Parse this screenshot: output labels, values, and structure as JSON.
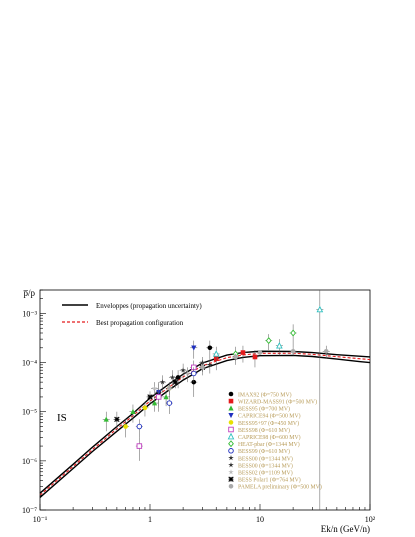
{
  "chart_data": {
    "type": "scatter",
    "title": "",
    "xlabel": "Ek/n (GeV/n)",
    "ylabel": "p̅/p",
    "xscale": "log",
    "yscale": "log",
    "xlim": [
      0.1,
      100
    ],
    "ylim": [
      1e-07,
      0.003
    ],
    "grid": false,
    "annotation": "IS",
    "x_tick_labels": [
      "10⁻¹",
      "1",
      "10",
      "10²"
    ],
    "x_tick_values": [
      0.1,
      1,
      10,
      100
    ],
    "y_tick_labels": [
      "10⁻⁷",
      "10⁻⁶",
      "10⁻⁵",
      "10⁻⁴",
      "10⁻³"
    ],
    "y_tick_values": [
      1e-07,
      1e-06,
      1e-05,
      0.0001,
      0.001
    ],
    "curves": [
      {
        "name": "Enveloppes (propagation uncertainty)",
        "style": "solid",
        "color": "#000000",
        "upper": [
          [
            0.1,
            2.2e-07
          ],
          [
            0.2,
            8.5e-07
          ],
          [
            0.3,
            1.9e-06
          ],
          [
            0.5,
            5e-06
          ],
          [
            0.7,
            9.2e-06
          ],
          [
            1,
            1.9e-05
          ],
          [
            1.5,
            3.7e-05
          ],
          [
            2,
            5.8e-05
          ],
          [
            3,
            9.8e-05
          ],
          [
            5,
            0.000142
          ],
          [
            7,
            0.00016
          ],
          [
            10,
            0.00017
          ],
          [
            20,
            0.000168
          ],
          [
            30,
            0.00016
          ],
          [
            50,
            0.000145
          ],
          [
            80,
            0.000135
          ],
          [
            100,
            0.00013
          ]
        ],
        "lower": [
          [
            0.1,
            1.8e-07
          ],
          [
            0.2,
            7e-07
          ],
          [
            0.3,
            1.55e-06
          ],
          [
            0.5,
            4e-06
          ],
          [
            0.7,
            7.4e-06
          ],
          [
            1,
            1.45e-05
          ],
          [
            1.5,
            2.8e-05
          ],
          [
            2,
            4.4e-05
          ],
          [
            3,
            7.5e-05
          ],
          [
            5,
            0.00011
          ],
          [
            7,
            0.000127
          ],
          [
            10,
            0.000138
          ],
          [
            20,
            0.00014
          ],
          [
            30,
            0.000133
          ],
          [
            50,
            0.000118
          ],
          [
            80,
            0.000105
          ],
          [
            100,
            0.0001
          ]
        ]
      },
      {
        "name": "Best propagation configuration",
        "style": "dashed",
        "color": "#e41a1c",
        "points": [
          [
            0.1,
            2e-07
          ],
          [
            0.2,
            7.7e-07
          ],
          [
            0.3,
            1.7e-06
          ],
          [
            0.5,
            4.5e-06
          ],
          [
            0.7,
            8.3e-06
          ],
          [
            1,
            1.65e-05
          ],
          [
            1.5,
            3.2e-05
          ],
          [
            2,
            5.1e-05
          ],
          [
            3,
            8.6e-05
          ],
          [
            5,
            0.000126
          ],
          [
            7,
            0.000143
          ],
          [
            10,
            0.000154
          ],
          [
            20,
            0.000155
          ],
          [
            30,
            0.000147
          ],
          [
            50,
            0.000132
          ],
          [
            80,
            0.00012
          ],
          [
            100,
            0.000115
          ]
        ]
      }
    ],
    "series": [
      {
        "name": "IMAX92 (Φ=750 MV)",
        "color": "#000000",
        "marker": "circle",
        "points": [
          [
            1.2,
            2.5e-05,
            1.2e-05
          ],
          [
            1.8,
            5e-05,
            2e-05
          ],
          [
            2.5,
            4e-05,
            2e-05
          ],
          [
            3.5,
            0.0002,
            8e-05
          ]
        ]
      },
      {
        "name": "WIZARD-MASS91 (Φ=500 MV)",
        "color": "#e41a1c",
        "marker": "square",
        "points": [
          [
            4,
            0.00012,
            5e-05
          ],
          [
            7,
            0.00016,
            6e-05
          ],
          [
            9,
            0.00013,
            5e-05
          ]
        ]
      },
      {
        "name": "BESS95 (Φ=700 MV)",
        "color": "#33bb33",
        "marker": "triangle-up",
        "points": [
          [
            0.4,
            7e-06,
            3e-06
          ],
          [
            0.7,
            1e-05,
            4e-06
          ],
          [
            1.1,
            1.5e-05,
            5e-06
          ],
          [
            1.4,
            2e-05,
            7e-06
          ]
        ]
      },
      {
        "name": "CAPRICE94 (Φ=500 MV)",
        "color": "#1f2fbf",
        "marker": "triangle-down",
        "points": [
          [
            1.2,
            2.5e-05,
            1.5e-05
          ],
          [
            2.5,
            0.0002,
            8e-05
          ]
        ]
      },
      {
        "name": "BESS95+97 (Φ=450 MV)",
        "color": "#e8e000",
        "marker": "circle",
        "points": [
          [
            0.6,
            5e-06,
            2e-06
          ],
          [
            0.9,
            1.2e-05,
            4e-06
          ],
          [
            1.5,
            3e-05,
            8e-06
          ]
        ]
      },
      {
        "name": "BESS98 (Φ=610 MV)",
        "color": "#c040c0",
        "marker": "square-open",
        "points": [
          [
            0.8,
            2e-06,
            1e-06
          ],
          [
            1.2,
            2e-05,
            8e-06
          ],
          [
            2.5,
            8e-05,
            3e-05
          ]
        ]
      },
      {
        "name": "CAPRICE98 (Φ=600 MV)",
        "color": "#30c0c0",
        "marker": "triangle-up-open",
        "points": [
          [
            4,
            0.00015,
            6e-05
          ],
          [
            15,
            0.00022,
            8e-05
          ],
          [
            35,
            0.0012,
            0.0018
          ]
        ]
      },
      {
        "name": "HEAT-pbar (Φ=1344 MV)",
        "color": "#33bb33",
        "marker": "diamond-open",
        "points": [
          [
            6,
            0.00015,
            6e-05
          ],
          [
            12,
            0.00028,
            0.0001
          ],
          [
            20,
            0.0004,
            0.0002
          ]
        ]
      },
      {
        "name": "BESS99 (Φ=610 MV)",
        "color": "#1f2fbf",
        "marker": "circle-open",
        "points": [
          [
            0.8,
            5e-06,
            2e-06
          ],
          [
            1.5,
            1.5e-05,
            6e-06
          ],
          [
            2.5,
            6e-05,
            2e-05
          ]
        ]
      },
      {
        "name": "BESS00 (Φ=1344 MV)",
        "color": "#333333",
        "marker": "star",
        "points": [
          [
            1.3,
            4e-05,
            1.5e-05
          ],
          [
            2,
            7e-05,
            2.5e-05
          ],
          [
            3,
            0.0001,
            3e-05
          ]
        ]
      },
      {
        "name": "BESS00 (Φ=1344 MV)",
        "color": "#333333",
        "marker": "star",
        "points": [
          [
            1.6,
            5e-05,
            2e-05
          ],
          [
            3.5,
            9e-05,
            3e-05
          ]
        ]
      },
      {
        "name": "BESS02 (Φ=1109 MV)",
        "color": "#bbbbbb",
        "marker": "star",
        "points": [
          [
            1.1,
            3e-05,
            1e-05
          ],
          [
            2.2,
            6e-05,
            2e-05
          ]
        ]
      },
      {
        "name": "BESS Polar1 (Φ=764 MV)",
        "color": "#000000",
        "marker": "cross",
        "points": [
          [
            0.5,
            7e-06,
            3e-06
          ],
          [
            1,
            2e-05,
            6e-06
          ],
          [
            1.7,
            4e-05,
            1e-05
          ],
          [
            3,
            8e-05,
            2.5e-05
          ]
        ]
      },
      {
        "name": "PAMELA preliminary (Φ=500 MV)",
        "color": "#aaaaaa",
        "marker": "circle",
        "points": [
          [
            1.5,
            3e-05,
            1e-05
          ],
          [
            3,
            8e-05,
            1.5e-05
          ],
          [
            6,
            0.00013,
            2e-05
          ],
          [
            10,
            0.00016,
            2e-05
          ],
          [
            20,
            0.00017,
            3e-05
          ],
          [
            40,
            0.00017,
            5e-05
          ]
        ]
      }
    ]
  }
}
